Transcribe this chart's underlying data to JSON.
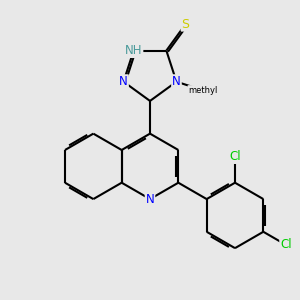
{
  "background_color": "#e8e8e8",
  "atom_colors": {
    "C": "#000000",
    "N": "#0000ff",
    "S": "#cccc00",
    "Cl": "#00cc00",
    "H": "#008888"
  },
  "bond_lw": 1.5,
  "figsize": [
    3.0,
    3.0
  ],
  "dpi": 100,
  "xlim": [
    -2.5,
    5.5
  ],
  "ylim": [
    -5.5,
    3.5
  ]
}
